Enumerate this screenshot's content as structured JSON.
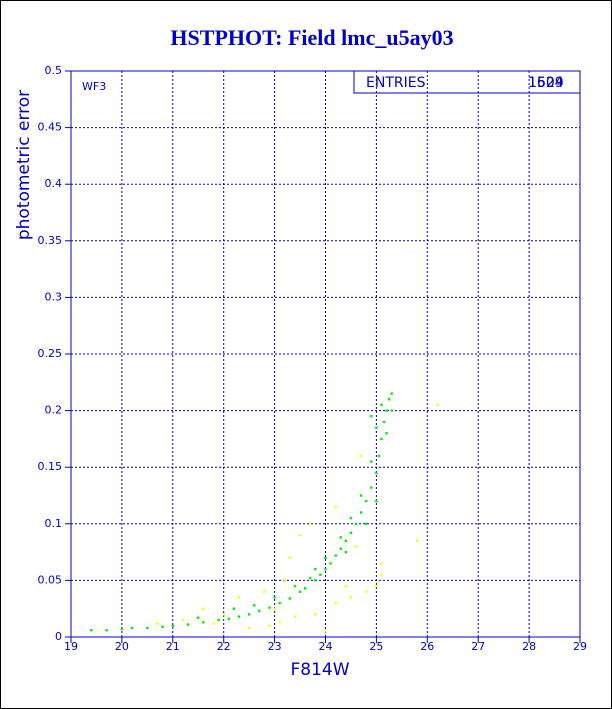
{
  "chart_data": {
    "type": "scatter",
    "title": "HSTPHOT: Field lmc_u5ay03",
    "xlabel": "F814W",
    "ylabel": "photometric error",
    "annotations": [
      "WF3"
    ],
    "stats_box": {
      "label": "ENTRIES",
      "values": [
        "1609",
        "1524"
      ]
    },
    "xlim": [
      19,
      29
    ],
    "xticks": [
      19,
      20,
      21,
      22,
      23,
      24,
      25,
      26,
      27,
      28,
      29
    ],
    "ylim": [
      0,
      0.5
    ],
    "yticks": [
      0,
      0.05,
      0.1,
      0.15,
      0.2,
      0.25,
      0.3,
      0.35,
      0.4,
      0.45,
      0.5
    ],
    "grid": true,
    "series": [
      {
        "color": "#ffff00",
        "x": [
          21.2,
          21.8,
          22.5,
          22.9,
          23.1,
          23.4,
          23.8,
          24.2,
          24.5,
          24.8,
          25.0,
          25.1,
          24.6,
          23.5,
          23.7,
          24.2,
          23.2,
          22.8,
          22.3,
          21.6,
          20.7,
          24.0,
          25.1,
          24.7,
          26.2,
          25.8,
          23.3,
          23.0,
          24.4,
          22.0
        ],
        "values": [
          0.015,
          0.012,
          0.008,
          0.01,
          0.013,
          0.018,
          0.02,
          0.03,
          0.035,
          0.04,
          0.045,
          0.055,
          0.08,
          0.09,
          0.1,
          0.115,
          0.05,
          0.04,
          0.035,
          0.025,
          0.012,
          0.005,
          0.065,
          0.16,
          0.205,
          0.085,
          0.07,
          0.025,
          0.045,
          0.02
        ]
      },
      {
        "color": "#00ee00",
        "x": [
          19.4,
          19.7,
          20.0,
          20.2,
          20.5,
          20.8,
          21.0,
          21.3,
          21.6,
          21.9,
          22.1,
          22.3,
          22.5,
          22.7,
          22.9,
          23.1,
          23.3,
          23.5,
          23.6,
          23.8,
          23.9,
          24.0,
          24.1,
          24.2,
          24.3,
          24.4,
          24.5,
          24.6,
          24.7,
          24.8,
          24.9,
          25.0,
          25.05,
          25.1,
          25.15,
          25.2,
          25.25,
          25.3,
          24.9,
          25.0,
          25.1,
          24.7,
          24.5,
          24.3,
          24.0,
          23.7,
          23.4,
          23.0,
          22.6,
          22.2,
          21.5,
          24.9,
          25.2,
          24.8,
          24.4,
          23.8,
          25.3,
          25.0
        ],
        "values": [
          0.006,
          0.006,
          0.007,
          0.008,
          0.008,
          0.009,
          0.01,
          0.011,
          0.013,
          0.015,
          0.016,
          0.018,
          0.02,
          0.023,
          0.026,
          0.03,
          0.034,
          0.04,
          0.043,
          0.05,
          0.055,
          0.06,
          0.065,
          0.072,
          0.078,
          0.085,
          0.092,
          0.1,
          0.11,
          0.12,
          0.132,
          0.145,
          0.16,
          0.175,
          0.19,
          0.2,
          0.21,
          0.215,
          0.155,
          0.185,
          0.205,
          0.125,
          0.105,
          0.088,
          0.07,
          0.052,
          0.045,
          0.035,
          0.028,
          0.025,
          0.017,
          0.195,
          0.18,
          0.1,
          0.075,
          0.06,
          0.2,
          0.12
        ]
      }
    ]
  }
}
